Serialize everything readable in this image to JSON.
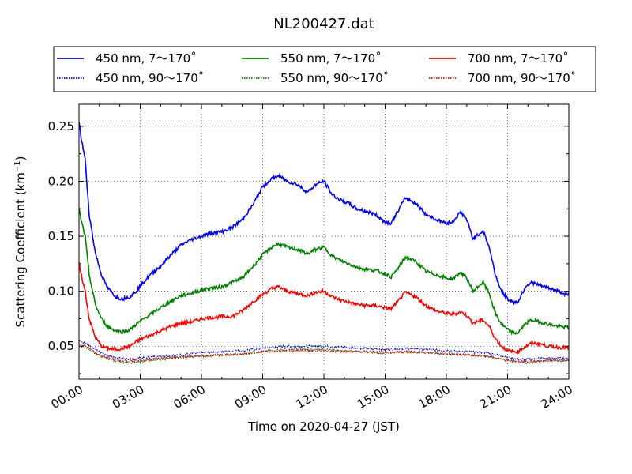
{
  "chart_data": {
    "type": "line",
    "title": "NL200427.dat",
    "xlabel": "Time on 2020-04-27 (JST)",
    "ylabel_main": "Scattering Coefficient (km",
    "ylabel_sup": "−1",
    "ylabel_close": ")",
    "xlim": [
      0,
      24
    ],
    "ylim": [
      0.02,
      0.27
    ],
    "x_ticks": [
      {
        "value": 0,
        "label": "00:00"
      },
      {
        "value": 3,
        "label": "03:00"
      },
      {
        "value": 6,
        "label": "06:00"
      },
      {
        "value": 9,
        "label": "09:00"
      },
      {
        "value": 12,
        "label": "12:00"
      },
      {
        "value": 15,
        "label": "15:00"
      },
      {
        "value": 18,
        "label": "18:00"
      },
      {
        "value": 21,
        "label": "21:00"
      },
      {
        "value": 24,
        "label": "24:00"
      }
    ],
    "y_ticks": [
      {
        "value": 0.05,
        "label": "0.05"
      },
      {
        "value": 0.1,
        "label": "0.10"
      },
      {
        "value": 0.15,
        "label": "0.15"
      },
      {
        "value": 0.2,
        "label": "0.20"
      },
      {
        "value": 0.25,
        "label": "0.25"
      }
    ],
    "grid": true,
    "legend_position": "above-plot",
    "series": [
      {
        "name": "450 nm, 7～170˚",
        "color": "#0000ff",
        "style": "solid",
        "x": [
          0,
          0.1,
          0.3,
          0.5,
          0.8,
          1.1,
          1.4,
          1.8,
          2.1,
          2.5,
          2.8,
          3.1,
          3.5,
          4,
          4.5,
          5,
          5.5,
          6,
          6.5,
          7,
          7.5,
          8,
          8.5,
          9,
          9.5,
          9.8,
          10.2,
          10.7,
          11.2,
          11.6,
          12,
          12.4,
          12.8,
          13.2,
          13.6,
          14,
          14.5,
          15,
          15.3,
          15.6,
          16,
          16.5,
          17,
          17.5,
          18,
          18.3,
          18.7,
          19,
          19.3,
          19.6,
          19.8,
          20.1,
          20.4,
          20.7,
          21,
          21.3,
          21.5,
          21.9,
          22.2,
          22.6,
          23,
          23.5,
          24
        ],
        "y": [
          0.255,
          0.24,
          0.22,
          0.17,
          0.135,
          0.115,
          0.103,
          0.095,
          0.093,
          0.095,
          0.1,
          0.107,
          0.115,
          0.123,
          0.133,
          0.142,
          0.147,
          0.15,
          0.153,
          0.154,
          0.158,
          0.165,
          0.178,
          0.195,
          0.203,
          0.205,
          0.2,
          0.197,
          0.19,
          0.197,
          0.2,
          0.188,
          0.183,
          0.18,
          0.175,
          0.173,
          0.17,
          0.163,
          0.162,
          0.172,
          0.185,
          0.18,
          0.17,
          0.165,
          0.162,
          0.163,
          0.172,
          0.165,
          0.148,
          0.152,
          0.155,
          0.14,
          0.115,
          0.1,
          0.093,
          0.09,
          0.09,
          0.105,
          0.108,
          0.105,
          0.103,
          0.1,
          0.096
        ]
      },
      {
        "name": "550 nm, 7～170˚",
        "color": "#008000",
        "style": "solid",
        "x": [
          0,
          0.1,
          0.3,
          0.5,
          0.8,
          1.1,
          1.4,
          1.8,
          2.1,
          2.5,
          2.8,
          3.1,
          3.5,
          4,
          4.5,
          5,
          5.5,
          6,
          6.5,
          7,
          7.5,
          8,
          8.5,
          9,
          9.5,
          9.8,
          10.2,
          10.7,
          11.2,
          11.6,
          12,
          12.4,
          12.8,
          13.2,
          13.6,
          14,
          14.5,
          15,
          15.3,
          15.6,
          16,
          16.5,
          17,
          17.5,
          18,
          18.3,
          18.7,
          19,
          19.3,
          19.6,
          19.8,
          20.1,
          20.4,
          20.7,
          21,
          21.3,
          21.5,
          21.9,
          22.2,
          22.6,
          23,
          23.5,
          24
        ],
        "y": [
          0.175,
          0.165,
          0.15,
          0.115,
          0.088,
          0.075,
          0.068,
          0.064,
          0.063,
          0.065,
          0.07,
          0.074,
          0.079,
          0.085,
          0.091,
          0.096,
          0.098,
          0.101,
          0.103,
          0.104,
          0.108,
          0.112,
          0.122,
          0.133,
          0.141,
          0.143,
          0.14,
          0.138,
          0.134,
          0.138,
          0.14,
          0.132,
          0.128,
          0.125,
          0.122,
          0.12,
          0.119,
          0.116,
          0.113,
          0.12,
          0.131,
          0.127,
          0.118,
          0.115,
          0.112,
          0.111,
          0.117,
          0.112,
          0.1,
          0.105,
          0.108,
          0.098,
          0.08,
          0.07,
          0.065,
          0.062,
          0.062,
          0.071,
          0.074,
          0.072,
          0.07,
          0.068,
          0.067
        ]
      },
      {
        "name": "700 nm, 7～170˚",
        "color": "#ff0000",
        "style": "solid",
        "x": [
          0,
          0.1,
          0.3,
          0.5,
          0.8,
          1.1,
          1.4,
          1.8,
          2.1,
          2.5,
          2.8,
          3.1,
          3.5,
          4,
          4.5,
          5,
          5.5,
          6,
          6.5,
          7,
          7.5,
          8,
          8.5,
          9,
          9.5,
          9.8,
          10.2,
          10.7,
          11.2,
          11.6,
          12,
          12.4,
          12.8,
          13.2,
          13.6,
          14,
          14.5,
          15,
          15.3,
          15.6,
          16,
          16.5,
          17,
          17.5,
          18,
          18.3,
          18.7,
          19,
          19.3,
          19.6,
          19.8,
          20.1,
          20.4,
          20.7,
          21,
          21.3,
          21.5,
          21.9,
          22.2,
          22.6,
          23,
          23.5,
          24
        ],
        "y": [
          0.125,
          0.115,
          0.1,
          0.075,
          0.058,
          0.05,
          0.048,
          0.047,
          0.048,
          0.05,
          0.054,
          0.057,
          0.06,
          0.064,
          0.068,
          0.071,
          0.072,
          0.075,
          0.076,
          0.077,
          0.077,
          0.082,
          0.09,
          0.097,
          0.103,
          0.104,
          0.1,
          0.098,
          0.096,
          0.099,
          0.1,
          0.095,
          0.092,
          0.09,
          0.088,
          0.087,
          0.087,
          0.085,
          0.084,
          0.09,
          0.099,
          0.095,
          0.087,
          0.082,
          0.08,
          0.079,
          0.081,
          0.078,
          0.071,
          0.073,
          0.074,
          0.068,
          0.057,
          0.05,
          0.046,
          0.045,
          0.045,
          0.05,
          0.053,
          0.052,
          0.05,
          0.049,
          0.048
        ]
      },
      {
        "name": "450 nm, 90～170˚",
        "color": "#0000ff",
        "style": "dotted",
        "x": [
          0,
          0.3,
          0.6,
          1,
          1.5,
          2,
          2.5,
          3,
          4,
          5,
          6,
          7,
          8,
          9,
          10,
          11,
          12,
          13,
          14,
          15,
          16,
          17,
          18,
          19,
          20,
          20.5,
          21,
          21.5,
          22,
          22.5,
          23,
          24
        ],
        "y": [
          0.055,
          0.053,
          0.05,
          0.045,
          0.041,
          0.039,
          0.038,
          0.039,
          0.041,
          0.042,
          0.044,
          0.045,
          0.046,
          0.048,
          0.05,
          0.05,
          0.05,
          0.049,
          0.048,
          0.047,
          0.048,
          0.047,
          0.046,
          0.045,
          0.044,
          0.042,
          0.04,
          0.038,
          0.038,
          0.039,
          0.039,
          0.039
        ]
      },
      {
        "name": "550 nm, 90～170˚",
        "color": "#008000",
        "style": "dotted",
        "x": [
          0,
          0.3,
          0.6,
          1,
          1.5,
          2,
          2.5,
          3,
          4,
          5,
          6,
          7,
          8,
          9,
          10,
          11,
          12,
          13,
          14,
          15,
          16,
          17,
          18,
          19,
          20,
          20.5,
          21,
          21.5,
          22,
          22.5,
          23,
          24
        ],
        "y": [
          0.05,
          0.049,
          0.046,
          0.041,
          0.038,
          0.036,
          0.035,
          0.036,
          0.038,
          0.04,
          0.041,
          0.042,
          0.043,
          0.045,
          0.047,
          0.047,
          0.047,
          0.046,
          0.045,
          0.044,
          0.045,
          0.044,
          0.043,
          0.042,
          0.041,
          0.039,
          0.037,
          0.036,
          0.035,
          0.036,
          0.037,
          0.037
        ]
      },
      {
        "name": "700 nm, 90～170˚",
        "color": "#ff0000",
        "style": "dotted",
        "x": [
          0,
          0.3,
          0.6,
          1,
          1.5,
          2,
          2.5,
          3,
          4,
          5,
          6,
          7,
          8,
          9,
          10,
          11,
          12,
          13,
          14,
          15,
          16,
          17,
          18,
          19,
          20,
          20.5,
          21,
          21.5,
          22,
          22.5,
          23,
          24
        ],
        "y": [
          0.052,
          0.05,
          0.047,
          0.042,
          0.039,
          0.037,
          0.037,
          0.037,
          0.039,
          0.04,
          0.041,
          0.042,
          0.043,
          0.045,
          0.046,
          0.046,
          0.046,
          0.045,
          0.045,
          0.044,
          0.045,
          0.044,
          0.043,
          0.042,
          0.041,
          0.039,
          0.037,
          0.036,
          0.036,
          0.036,
          0.037,
          0.037
        ]
      }
    ]
  }
}
